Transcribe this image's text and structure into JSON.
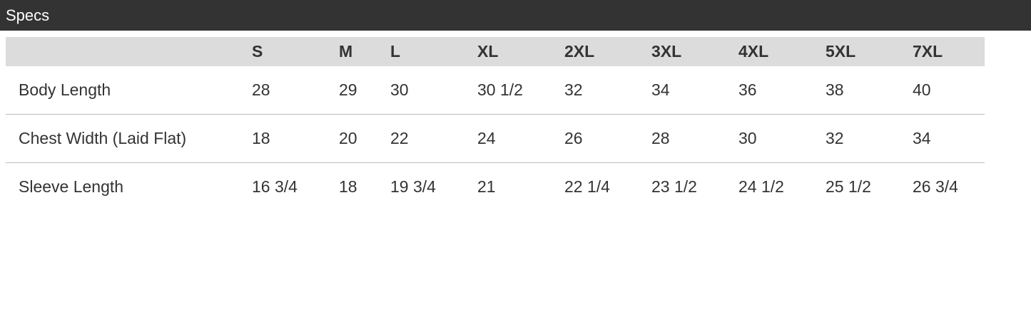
{
  "title": "Specs",
  "columns": [
    "",
    "S",
    "M",
    "L",
    "XL",
    "2XL",
    "3XL",
    "4XL",
    "5XL",
    "7XL"
  ],
  "rows": [
    [
      "Body Length",
      "28",
      "29",
      "30",
      "30 1/2",
      "32",
      "34",
      "36",
      "38",
      "40"
    ],
    [
      "Chest Width (Laid Flat)",
      "18",
      "20",
      "22",
      "24",
      "26",
      "28",
      "30",
      "32",
      "34"
    ],
    [
      "Sleeve Length",
      "16 3/4",
      "18",
      "19 3/4",
      "21",
      "22 1/4",
      "23 1/2",
      "24 1/2",
      "25 1/2",
      "26 3/4"
    ]
  ]
}
